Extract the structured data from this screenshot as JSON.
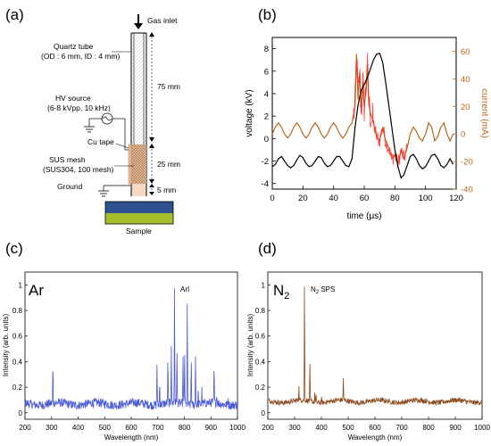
{
  "panels": {
    "a": {
      "label": "(a)",
      "gas_inlet": "Gas inlet",
      "quartz_tube_line1": "Quartz tube",
      "quartz_tube_line2": "(OD : 6 mm, ID : 4 mm)",
      "hv_line1": "HV source",
      "hv_line2": "(6-8 kVpp, 10 kHz)",
      "cu_tape": "Cu tape",
      "sus_line1": "SUS mesh",
      "sus_line2": "(SUS304, 100 mesh)",
      "ground": "Ground",
      "sample": "Sample",
      "dim_75": "75 mm",
      "dim_25": "25 mm",
      "dim_5": "5 mm",
      "colors": {
        "sample_top": "#2e5190",
        "sample_bottom": "#a5c02c",
        "mesh": "#e3b58e"
      }
    },
    "b": {
      "label": "(b)"
    },
    "c": {
      "label": "(c)",
      "gas": "Ar",
      "annotation": "ArI"
    },
    "d": {
      "label": "(d)",
      "gas_base": "N",
      "gas_sub": "2",
      "ann_base": "N",
      "ann_sub": "2",
      "ann_rest": " SPS"
    }
  },
  "chart_data": [
    {
      "id": "b",
      "type": "line",
      "xlabel": "time (μs)",
      "ylabel": "voltage (kV)",
      "y2label": "current (mA)",
      "xlim": [
        0,
        120
      ],
      "ylim": [
        -4.5,
        9
      ],
      "y2lim": [
        -40,
        70
      ],
      "xticks": [
        0,
        20,
        40,
        60,
        80,
        100,
        120
      ],
      "yticks": [
        -4,
        -2,
        0,
        2,
        4,
        6,
        8
      ],
      "y2ticks": [
        -40,
        -20,
        0,
        20,
        40,
        60
      ],
      "colors": {
        "voltage": "#000000",
        "current": "#b5651d",
        "current_spikes": "#ff2a2a"
      },
      "series": [
        {
          "axis": "left",
          "x": [
            0,
            2,
            4,
            6,
            8,
            10,
            12,
            14,
            16,
            18,
            20,
            22,
            24,
            26,
            28,
            30,
            32,
            34,
            36,
            38,
            40,
            42,
            44,
            46,
            48,
            50,
            52,
            54,
            56,
            58,
            60,
            62,
            64,
            66,
            68,
            70,
            72,
            74,
            76,
            78,
            80,
            82,
            84,
            86,
            88,
            90,
            92,
            94,
            96,
            98,
            100,
            102,
            104,
            106,
            108,
            110,
            112,
            114,
            116,
            118
          ],
          "values": [
            -2.5,
            -2.3,
            -1.8,
            -1.6,
            -2.0,
            -2.4,
            -2.6,
            -2.4,
            -1.9,
            -1.5,
            -1.7,
            -2.2,
            -2.5,
            -2.4,
            -2.0,
            -1.6,
            -1.7,
            -2.2,
            -2.5,
            -2.4,
            -2.0,
            -1.6,
            -1.6,
            -2.0,
            -2.4,
            -2.5,
            -1.8,
            1.0,
            3.0,
            4.3,
            4.8,
            5.4,
            6.2,
            7.0,
            7.5,
            7.6,
            6.8,
            5.0,
            3.0,
            1.0,
            -1.0,
            -2.5,
            -3.5,
            -3.2,
            -2.4,
            -1.6,
            -1.4,
            -1.8,
            -2.4,
            -2.7,
            -2.5,
            -2.0,
            -1.5,
            -1.4,
            -1.8,
            -2.4,
            -2.6,
            -2.3,
            -1.8,
            -2.3
          ]
        },
        {
          "axis": "right",
          "x": [
            0,
            2,
            4,
            6,
            8,
            10,
            12,
            14,
            16,
            18,
            20,
            22,
            24,
            26,
            28,
            30,
            32,
            34,
            36,
            38,
            40,
            42,
            44,
            46,
            48,
            50,
            52,
            54,
            55,
            56,
            57,
            58,
            59,
            60,
            61,
            62,
            63,
            64,
            66,
            68,
            70,
            72,
            74,
            76,
            78,
            80,
            82,
            84,
            86,
            88,
            90,
            92,
            94,
            96,
            98,
            100,
            102,
            104,
            106,
            108,
            110,
            112,
            114,
            116,
            118
          ],
          "values": [
            0,
            5,
            8,
            5,
            0,
            -3,
            0,
            5,
            8,
            5,
            0,
            -3,
            0,
            5,
            8,
            5,
            0,
            -3,
            0,
            5,
            8,
            5,
            0,
            -3,
            0,
            5,
            8,
            20,
            58,
            25,
            45,
            15,
            38,
            20,
            30,
            50,
            22,
            15,
            8,
            -2,
            -5,
            5,
            -5,
            -10,
            -18,
            -15,
            -22,
            -12,
            -18,
            -10,
            0,
            5,
            2,
            -3,
            -5,
            0,
            8,
            5,
            -5,
            -2,
            5,
            8,
            0,
            -5,
            0
          ]
        }
      ]
    },
    {
      "id": "c",
      "type": "line",
      "xlabel": "Wavelength (nm)",
      "ylabel": "Intensity (arb. units)",
      "xlim": [
        200,
        1000
      ],
      "ylim": [
        -0.05,
        1.1
      ],
      "xticks": [
        200,
        300,
        400,
        500,
        600,
        700,
        800,
        900,
        1000
      ],
      "yticks": [
        0.0,
        0.2,
        0.4,
        0.6,
        0.8,
        1.0
      ],
      "color": "#4b5bd6",
      "baseline": 0.07,
      "peaks": [
        {
          "x": 305,
          "y": 0.38
        },
        {
          "x": 697,
          "y": 0.4
        },
        {
          "x": 707,
          "y": 0.25
        },
        {
          "x": 738,
          "y": 0.4
        },
        {
          "x": 751,
          "y": 0.55
        },
        {
          "x": 763,
          "y": 1.0
        },
        {
          "x": 772,
          "y": 0.5
        },
        {
          "x": 795,
          "y": 0.48
        },
        {
          "x": 801,
          "y": 0.48
        },
        {
          "x": 811,
          "y": 0.87
        },
        {
          "x": 826,
          "y": 0.45
        },
        {
          "x": 842,
          "y": 0.48
        },
        {
          "x": 852,
          "y": 0.18
        },
        {
          "x": 866,
          "y": 0.18
        },
        {
          "x": 912,
          "y": 0.35
        },
        {
          "x": 922,
          "y": 0.15
        },
        {
          "x": 965,
          "y": 0.14
        }
      ]
    },
    {
      "id": "d",
      "type": "line",
      "xlabel": "Wavelength (nm)",
      "ylabel": "Intensity (arb. units)",
      "xlim": [
        200,
        1000
      ],
      "ylim": [
        -0.05,
        1.1
      ],
      "xticks": [
        200,
        300,
        400,
        500,
        600,
        700,
        800,
        900,
        1000
      ],
      "yticks": [
        0.0,
        0.2,
        0.4,
        0.6,
        0.8,
        1.0
      ],
      "color": "#8b4a1e",
      "baseline": 0.09,
      "peaks": [
        {
          "x": 316,
          "y": 0.2
        },
        {
          "x": 337,
          "y": 1.0
        },
        {
          "x": 357,
          "y": 0.38
        },
        {
          "x": 375,
          "y": 0.15
        },
        {
          "x": 380,
          "y": 0.14
        },
        {
          "x": 400,
          "y": 0.12
        },
        {
          "x": 482,
          "y": 0.26
        }
      ]
    }
  ]
}
